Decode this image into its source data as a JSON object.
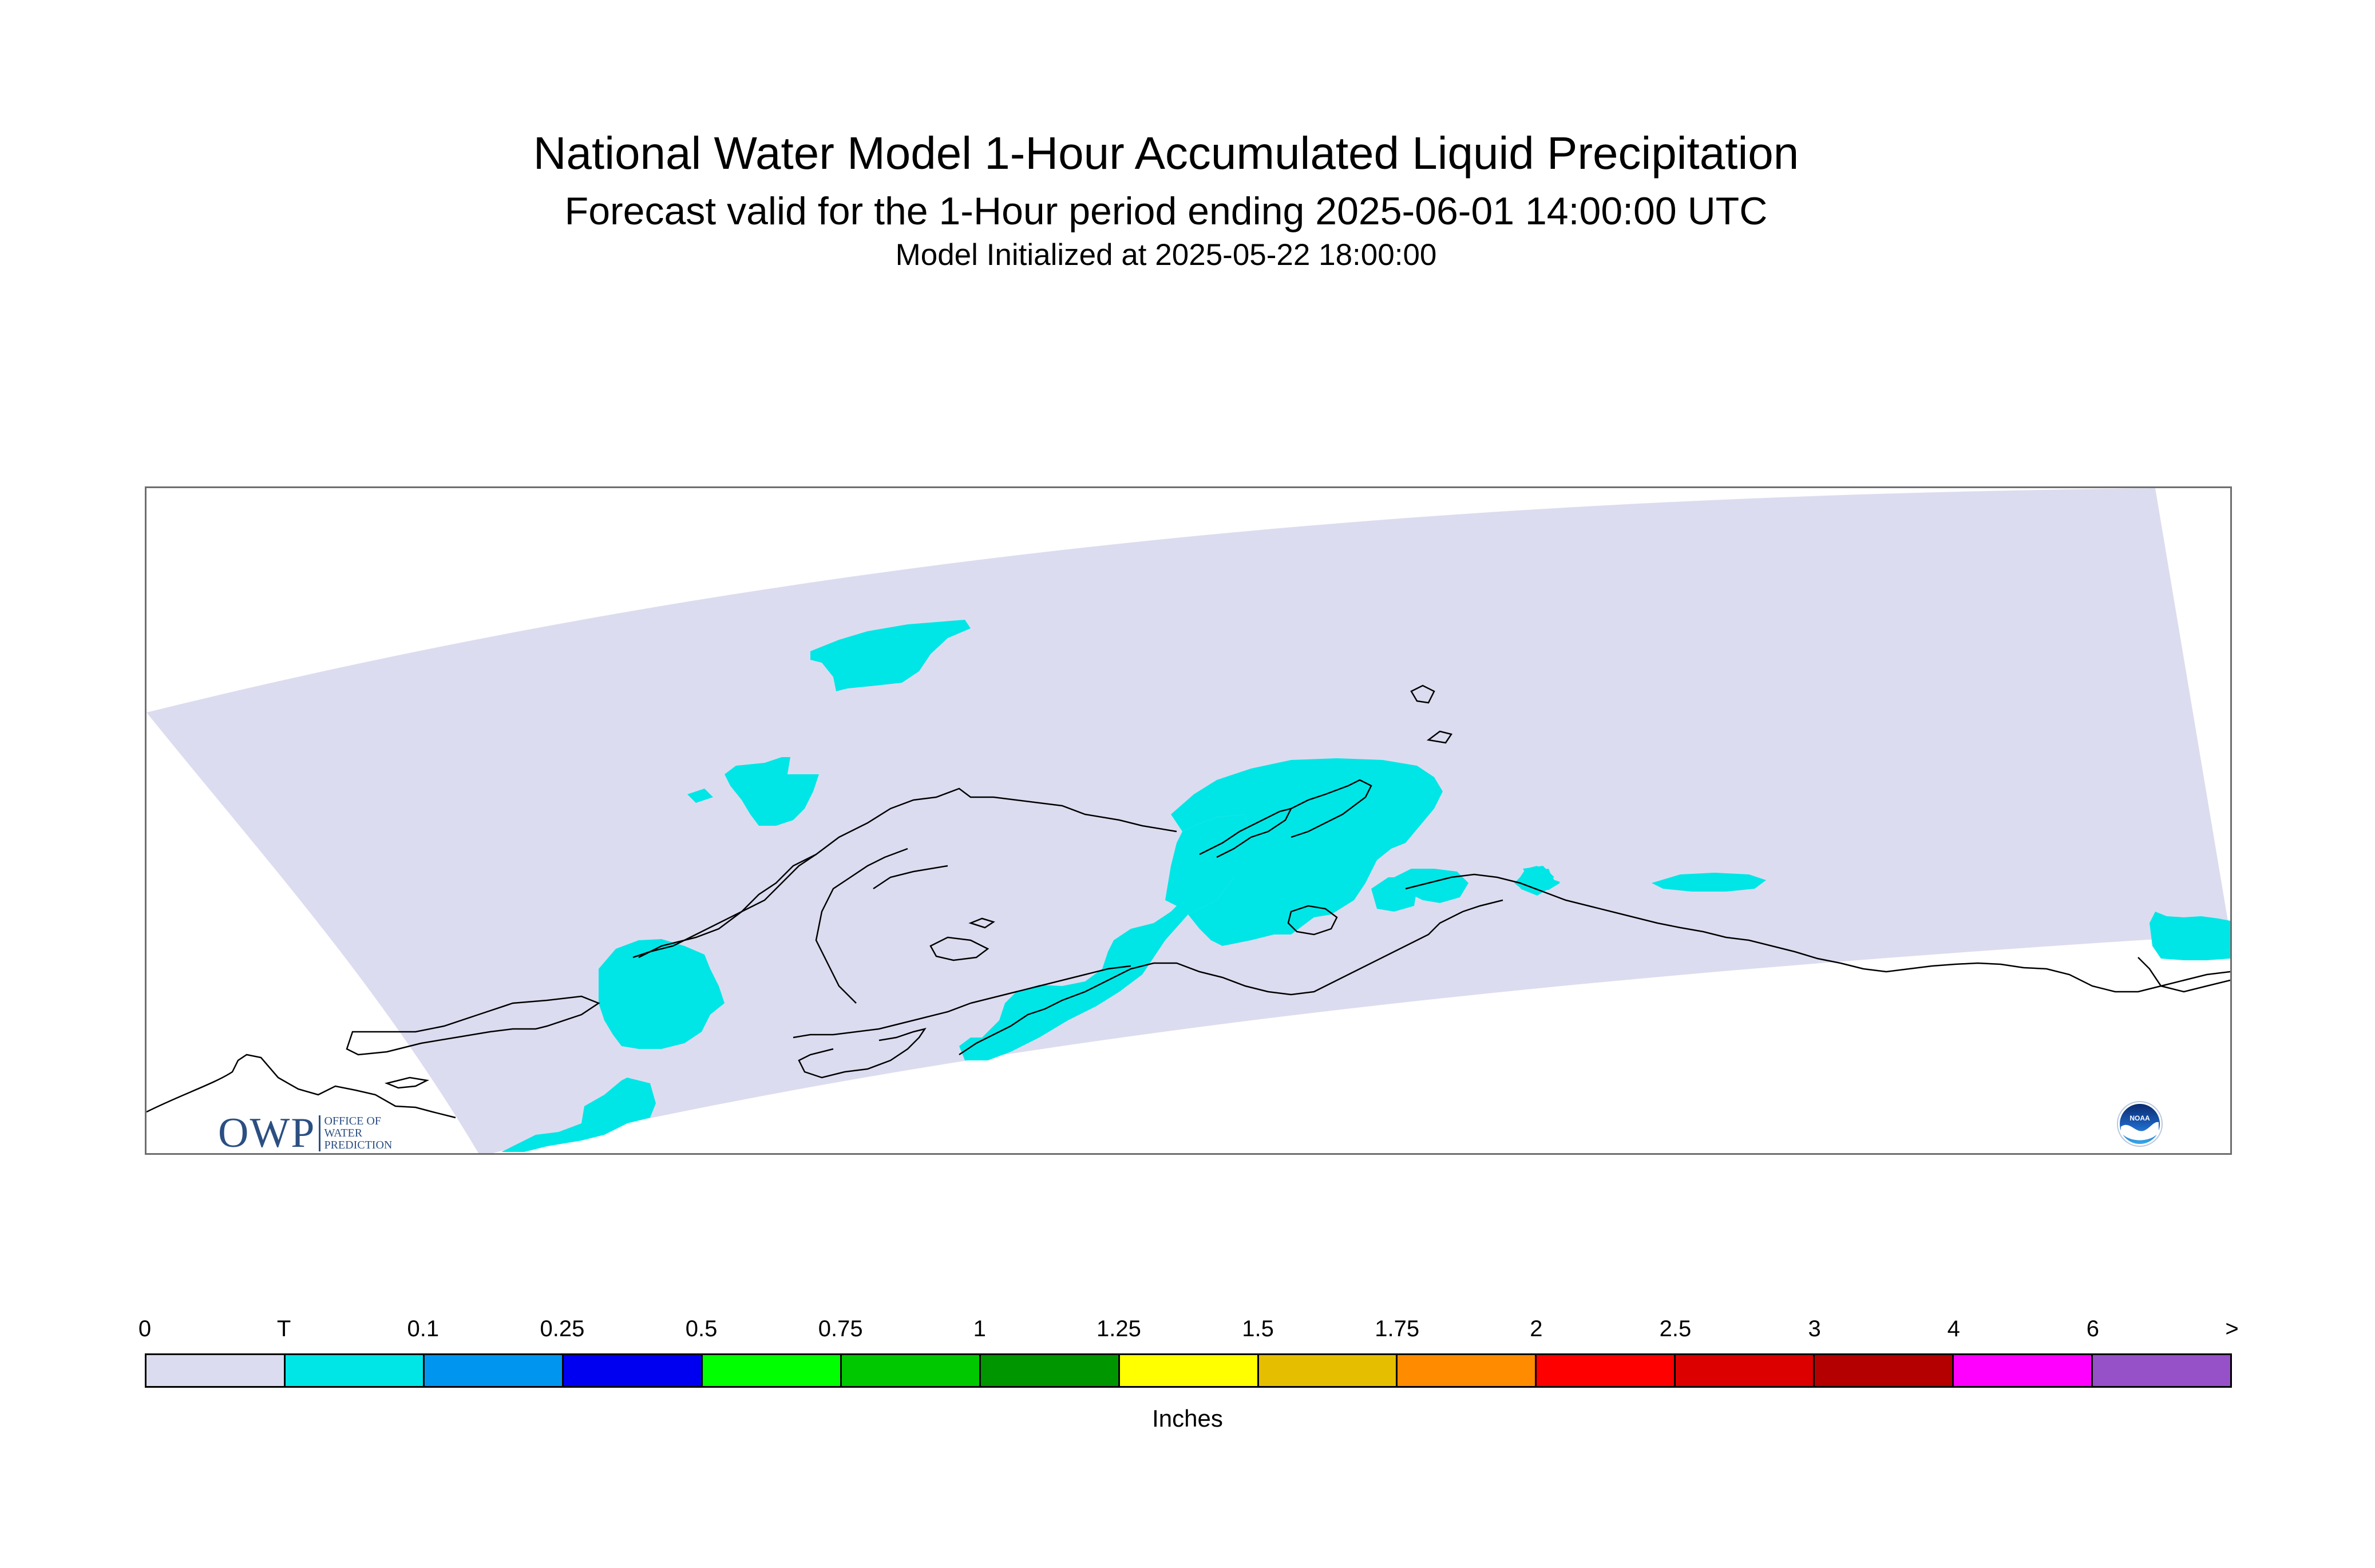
{
  "header": {
    "title": "National Water Model 1-Hour Accumulated Liquid Precipitation",
    "subtitle": "Forecast valid for the 1-Hour period ending 2025-06-01 14:00:00 UTC",
    "initialized": "Model Initialized at 2025-05-22 18:00:00"
  },
  "logos": {
    "owp_letters": "OWP",
    "owp_line1": "OFFICE OF",
    "owp_line2": "WATER",
    "owp_line3": "PREDICTION",
    "owp_color": "#2b4f82",
    "noaa_label": "NOAA",
    "noaa_icon": "noaa-logo-icon"
  },
  "map": {
    "domain_fill": "#dcdcf0",
    "precip_fill": "#00e6e6",
    "coastline_color": "#000000"
  },
  "legend": {
    "units": "Inches",
    "labels": [
      "0",
      "T",
      "0.1",
      "0.25",
      "0.5",
      "0.75",
      "1",
      "1.25",
      "1.5",
      "1.75",
      "2",
      "2.5",
      "3",
      "4",
      "6",
      ">"
    ],
    "colors": [
      "#dcdcf0",
      "#00e6e6",
      "#0096f0",
      "#0000f0",
      "#00ff00",
      "#00c800",
      "#009600",
      "#ffff00",
      "#e6be00",
      "#ff8c00",
      "#ff0000",
      "#dc0000",
      "#b40000",
      "#ff00ff",
      "#9650c8"
    ]
  }
}
